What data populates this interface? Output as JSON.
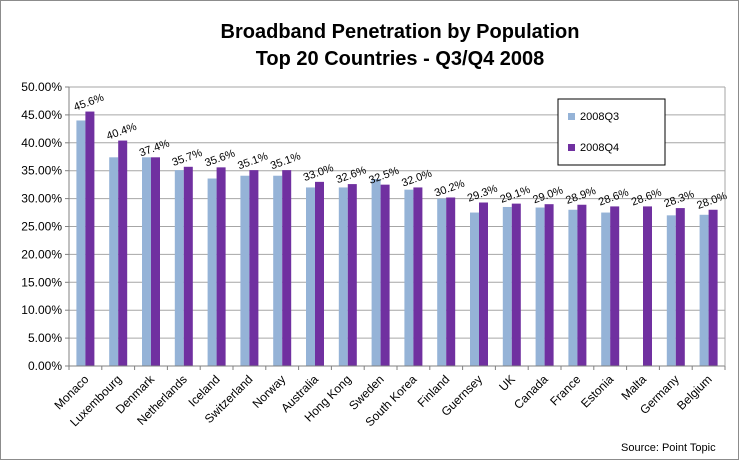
{
  "chart_data": {
    "type": "bar",
    "title": [
      "Broadband Penetration by Population",
      "Top 20 Countries - Q3/Q4 2008"
    ],
    "categories": [
      "Monaco",
      "Luxembourg",
      "Denmark",
      "Netherlands",
      "Iceland",
      "Switzerland",
      "Norway",
      "Australia",
      "Hong Kong",
      "Sweden",
      "South Korea",
      "Finland",
      "Guernsey",
      "UK",
      "Canada",
      "France",
      "Estonia",
      "Malta",
      "Germany",
      "Belgium"
    ],
    "series": [
      {
        "name": "2008Q3",
        "color": "#95b3d7",
        "values": [
          44.0,
          37.4,
          37.4,
          35.1,
          33.6,
          34.1,
          34.1,
          32.0,
          32.0,
          33.5,
          31.6,
          30.0,
          27.5,
          28.5,
          28.4,
          28.0,
          27.5,
          null,
          27.0,
          27.1
        ]
      },
      {
        "name": "2008Q4",
        "color": "#7030a0",
        "values": [
          45.6,
          40.4,
          37.4,
          35.7,
          35.6,
          35.1,
          35.1,
          33.0,
          32.6,
          32.5,
          32.0,
          30.2,
          29.3,
          29.1,
          29.0,
          28.9,
          28.6,
          28.6,
          28.3,
          28.0
        ]
      }
    ],
    "data_labels": [
      "45.6%",
      "40.4%",
      "37.4%",
      "35.7%",
      "35.6%",
      "35.1%",
      "35.1%",
      "33.0%",
      "32.6%",
      "32.5%",
      "32.0%",
      "30.2%",
      "29.3%",
      "29.1%",
      "29.0%",
      "28.9%",
      "28.6%",
      "28.6%",
      "28.3%",
      "28.0%"
    ],
    "yticks": [
      "0.00%",
      "5.00%",
      "10.00%",
      "15.00%",
      "20.00%",
      "25.00%",
      "30.00%",
      "35.00%",
      "40.00%",
      "45.00%",
      "50.00%"
    ],
    "ylim": [
      0,
      50
    ],
    "grid": true,
    "legend_position": "top-right",
    "xlabel": "",
    "ylabel": ""
  },
  "source_text": "Source:  Point Topic"
}
